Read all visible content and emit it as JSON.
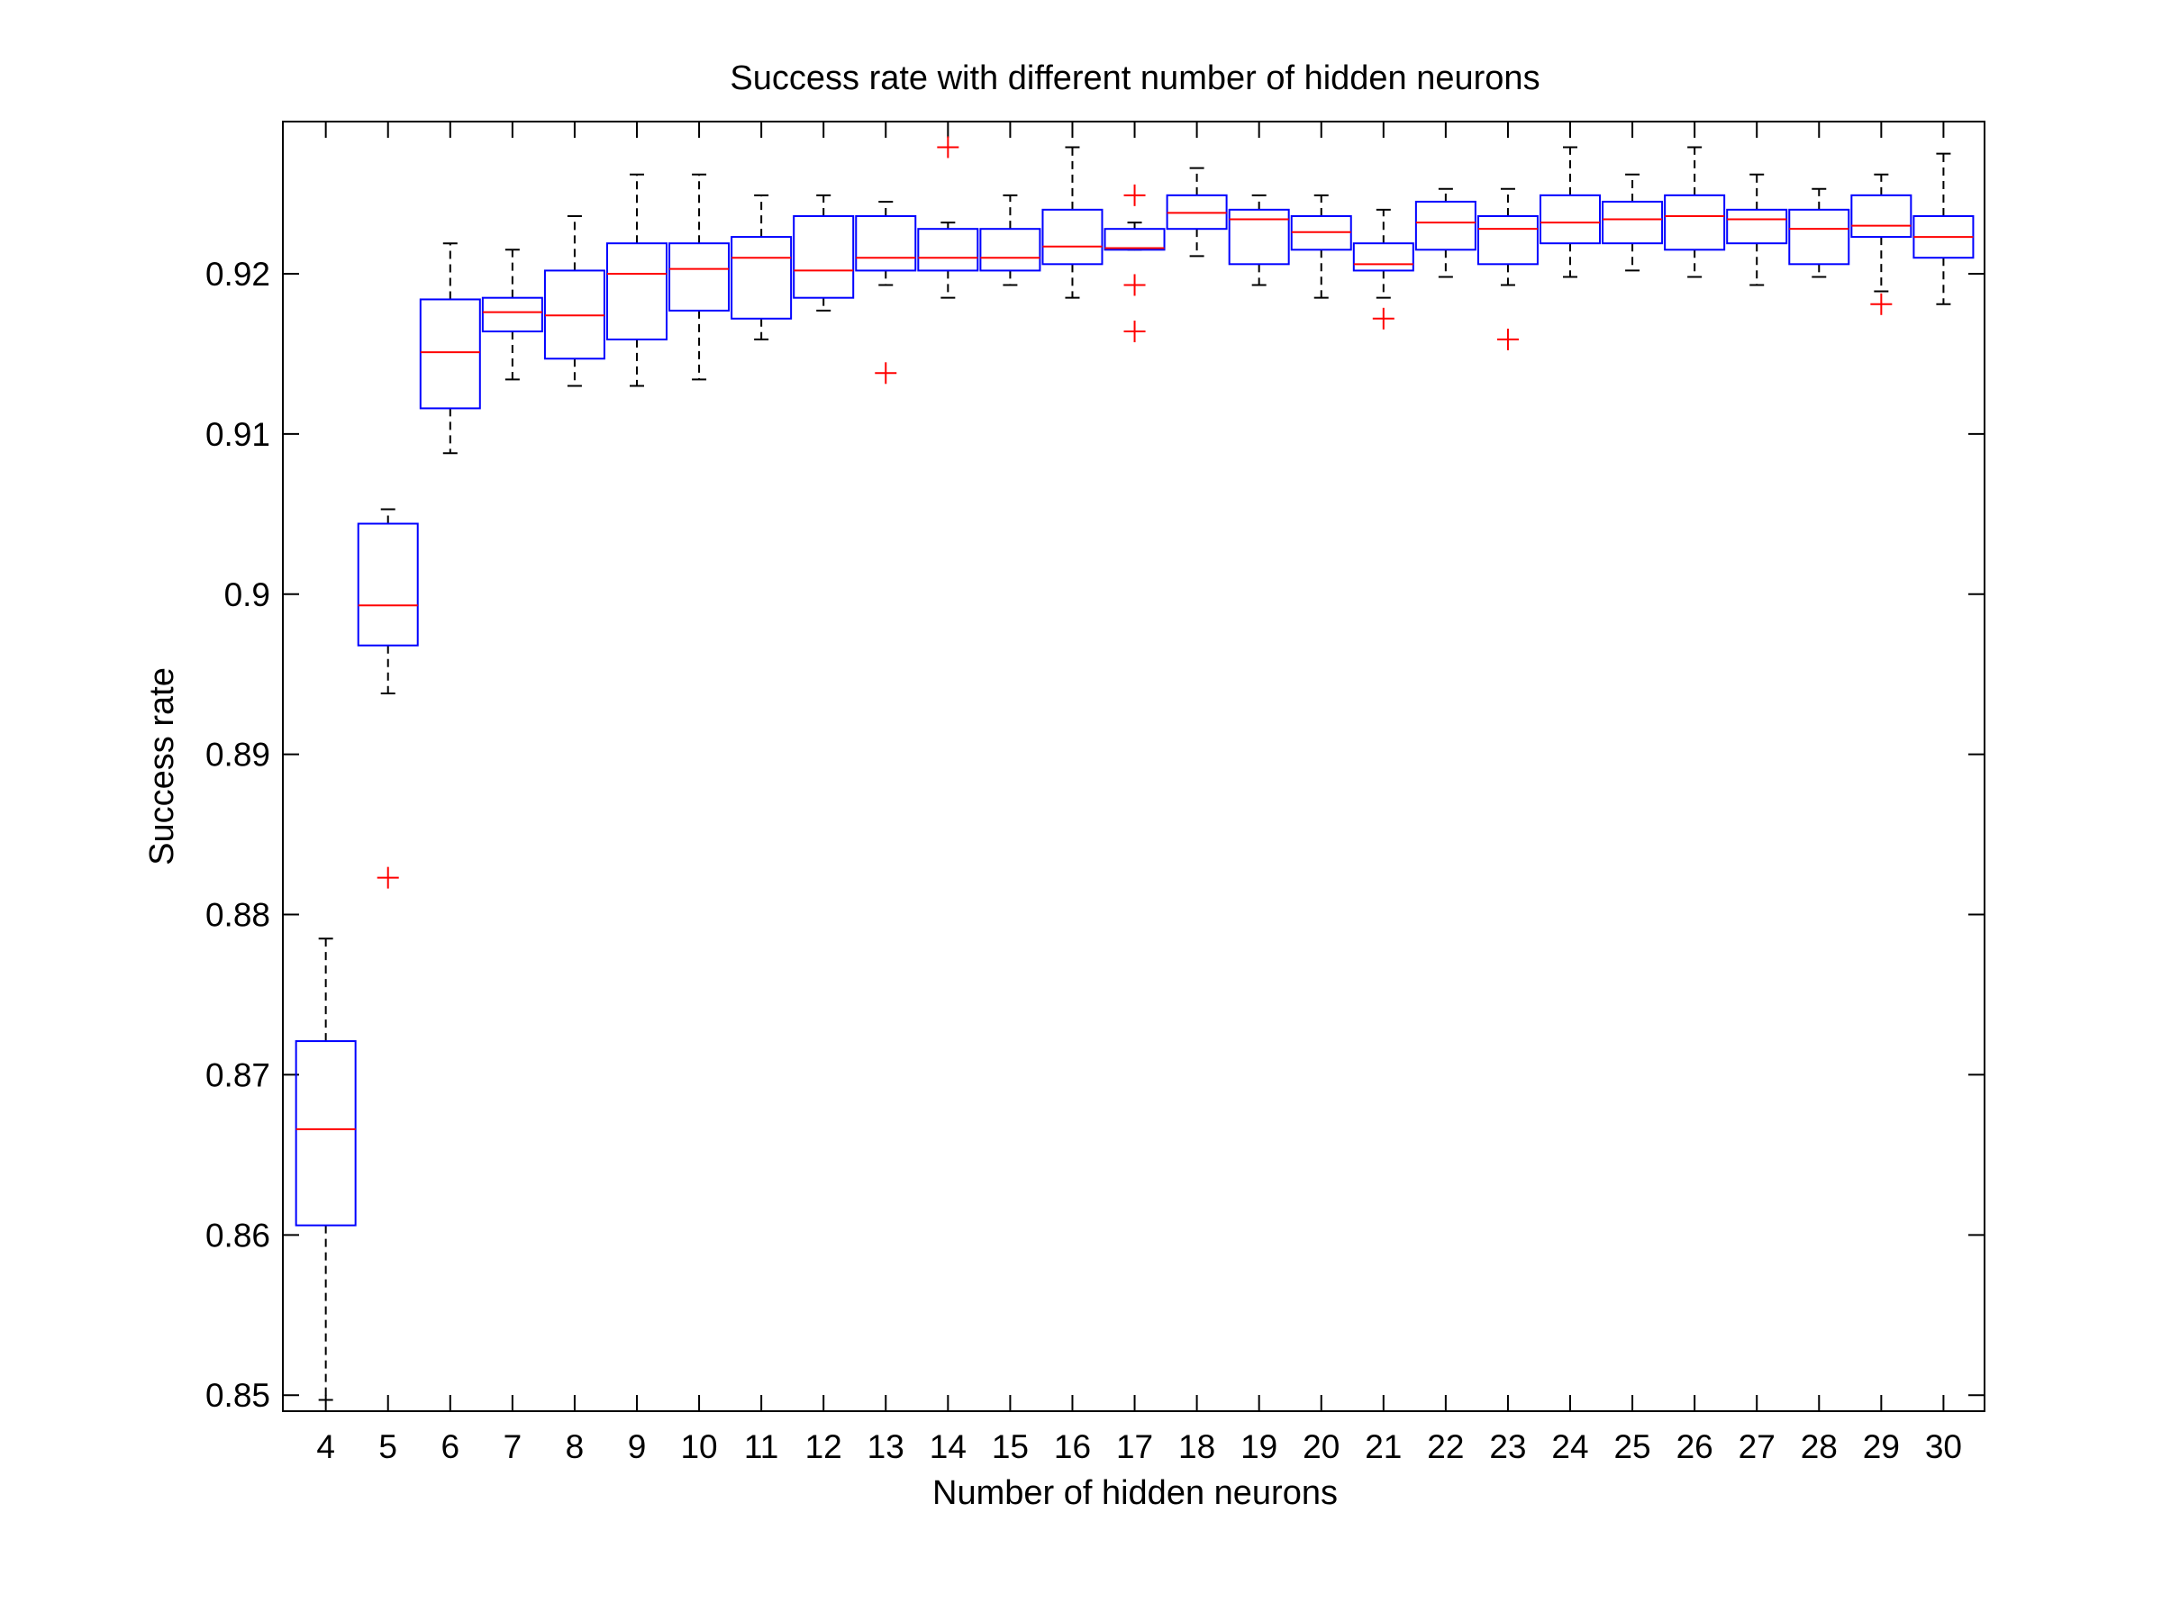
{
  "chart_data": {
    "type": "box",
    "title": "Success rate with different number of hidden neurons",
    "xlabel": "Number of hidden neurons",
    "ylabel": "Success rate",
    "ylim": [
      0.849,
      0.9295
    ],
    "yticks": [
      0.85,
      0.86,
      0.87,
      0.88,
      0.89,
      0.9,
      0.91,
      0.92
    ],
    "ytick_labels": [
      "0.85",
      "0.86",
      "0.87",
      "0.88",
      "0.89",
      "0.9",
      "0.91",
      "0.92"
    ],
    "grid": false,
    "legend": "none",
    "categories": [
      "4",
      "5",
      "6",
      "7",
      "8",
      "9",
      "10",
      "11",
      "12",
      "13",
      "14",
      "15",
      "16",
      "17",
      "18",
      "19",
      "20",
      "21",
      "22",
      "23",
      "24",
      "25",
      "26",
      "27",
      "28",
      "29",
      "30"
    ],
    "boxes": [
      {
        "min": 0.8497,
        "q1": 0.8606,
        "median": 0.8666,
        "q3": 0.8721,
        "max": 0.8785,
        "outliers": []
      },
      {
        "min": 0.8938,
        "q1": 0.8968,
        "median": 0.8993,
        "q3": 0.9044,
        "max": 0.9053,
        "outliers": [
          0.8823
        ]
      },
      {
        "min": 0.9088,
        "q1": 0.9116,
        "median": 0.9151,
        "q3": 0.9184,
        "max": 0.9219,
        "outliers": []
      },
      {
        "min": 0.9134,
        "q1": 0.9164,
        "median": 0.9176,
        "q3": 0.9185,
        "max": 0.9215,
        "outliers": []
      },
      {
        "min": 0.913,
        "q1": 0.9147,
        "median": 0.9174,
        "q3": 0.9202,
        "max": 0.9236,
        "outliers": []
      },
      {
        "min": 0.913,
        "q1": 0.9159,
        "median": 0.92,
        "q3": 0.9219,
        "max": 0.9262,
        "outliers": []
      },
      {
        "min": 0.9134,
        "q1": 0.9177,
        "median": 0.9203,
        "q3": 0.9219,
        "max": 0.9262,
        "outliers": []
      },
      {
        "min": 0.9159,
        "q1": 0.9172,
        "median": 0.921,
        "q3": 0.9223,
        "max": 0.9249,
        "outliers": []
      },
      {
        "min": 0.9177,
        "q1": 0.9185,
        "median": 0.9202,
        "q3": 0.9236,
        "max": 0.9249,
        "outliers": []
      },
      {
        "min": 0.9193,
        "q1": 0.9202,
        "median": 0.921,
        "q3": 0.9236,
        "max": 0.9245,
        "outliers": [
          0.9138
        ]
      },
      {
        "min": 0.9185,
        "q1": 0.9202,
        "median": 0.921,
        "q3": 0.9228,
        "max": 0.9232,
        "outliers": [
          0.9279
        ]
      },
      {
        "min": 0.9193,
        "q1": 0.9202,
        "median": 0.921,
        "q3": 0.9228,
        "max": 0.9249,
        "outliers": []
      },
      {
        "min": 0.9185,
        "q1": 0.9206,
        "median": 0.9217,
        "q3": 0.924,
        "max": 0.9279,
        "outliers": []
      },
      {
        "min": 0.9215,
        "q1": 0.9215,
        "median": 0.9216,
        "q3": 0.9228,
        "max": 0.9232,
        "outliers": [
          0.9249,
          0.9193,
          0.9164
        ]
      },
      {
        "min": 0.9211,
        "q1": 0.9228,
        "median": 0.9238,
        "q3": 0.9249,
        "max": 0.9266,
        "outliers": []
      },
      {
        "min": 0.9193,
        "q1": 0.9206,
        "median": 0.9234,
        "q3": 0.924,
        "max": 0.9249,
        "outliers": []
      },
      {
        "min": 0.9185,
        "q1": 0.9215,
        "median": 0.9226,
        "q3": 0.9236,
        "max": 0.9249,
        "outliers": []
      },
      {
        "min": 0.9185,
        "q1": 0.9202,
        "median": 0.9206,
        "q3": 0.9219,
        "max": 0.924,
        "outliers": [
          0.9172
        ]
      },
      {
        "min": 0.9198,
        "q1": 0.9215,
        "median": 0.9232,
        "q3": 0.9245,
        "max": 0.9253,
        "outliers": []
      },
      {
        "min": 0.9193,
        "q1": 0.9206,
        "median": 0.9228,
        "q3": 0.9236,
        "max": 0.9253,
        "outliers": [
          0.9159
        ]
      },
      {
        "min": 0.9198,
        "q1": 0.9219,
        "median": 0.9232,
        "q3": 0.9249,
        "max": 0.9279,
        "outliers": []
      },
      {
        "min": 0.9202,
        "q1": 0.9219,
        "median": 0.9234,
        "q3": 0.9245,
        "max": 0.9262,
        "outliers": []
      },
      {
        "min": 0.9198,
        "q1": 0.9215,
        "median": 0.9236,
        "q3": 0.9249,
        "max": 0.9279,
        "outliers": []
      },
      {
        "min": 0.9193,
        "q1": 0.9219,
        "median": 0.9234,
        "q3": 0.924,
        "max": 0.9262,
        "outliers": []
      },
      {
        "min": 0.9198,
        "q1": 0.9206,
        "median": 0.9228,
        "q3": 0.924,
        "max": 0.9253,
        "outliers": []
      },
      {
        "min": 0.9189,
        "q1": 0.9223,
        "median": 0.923,
        "q3": 0.9249,
        "max": 0.9262,
        "outliers": [
          0.9181
        ]
      },
      {
        "min": 0.9181,
        "q1": 0.921,
        "median": 0.9223,
        "q3": 0.9236,
        "max": 0.9275,
        "outliers": []
      }
    ],
    "colors": {
      "box": "#0000ff",
      "median": "#ff0000",
      "whisker": "#000000",
      "outlier": "#ff0000",
      "axes": "#000000"
    }
  }
}
